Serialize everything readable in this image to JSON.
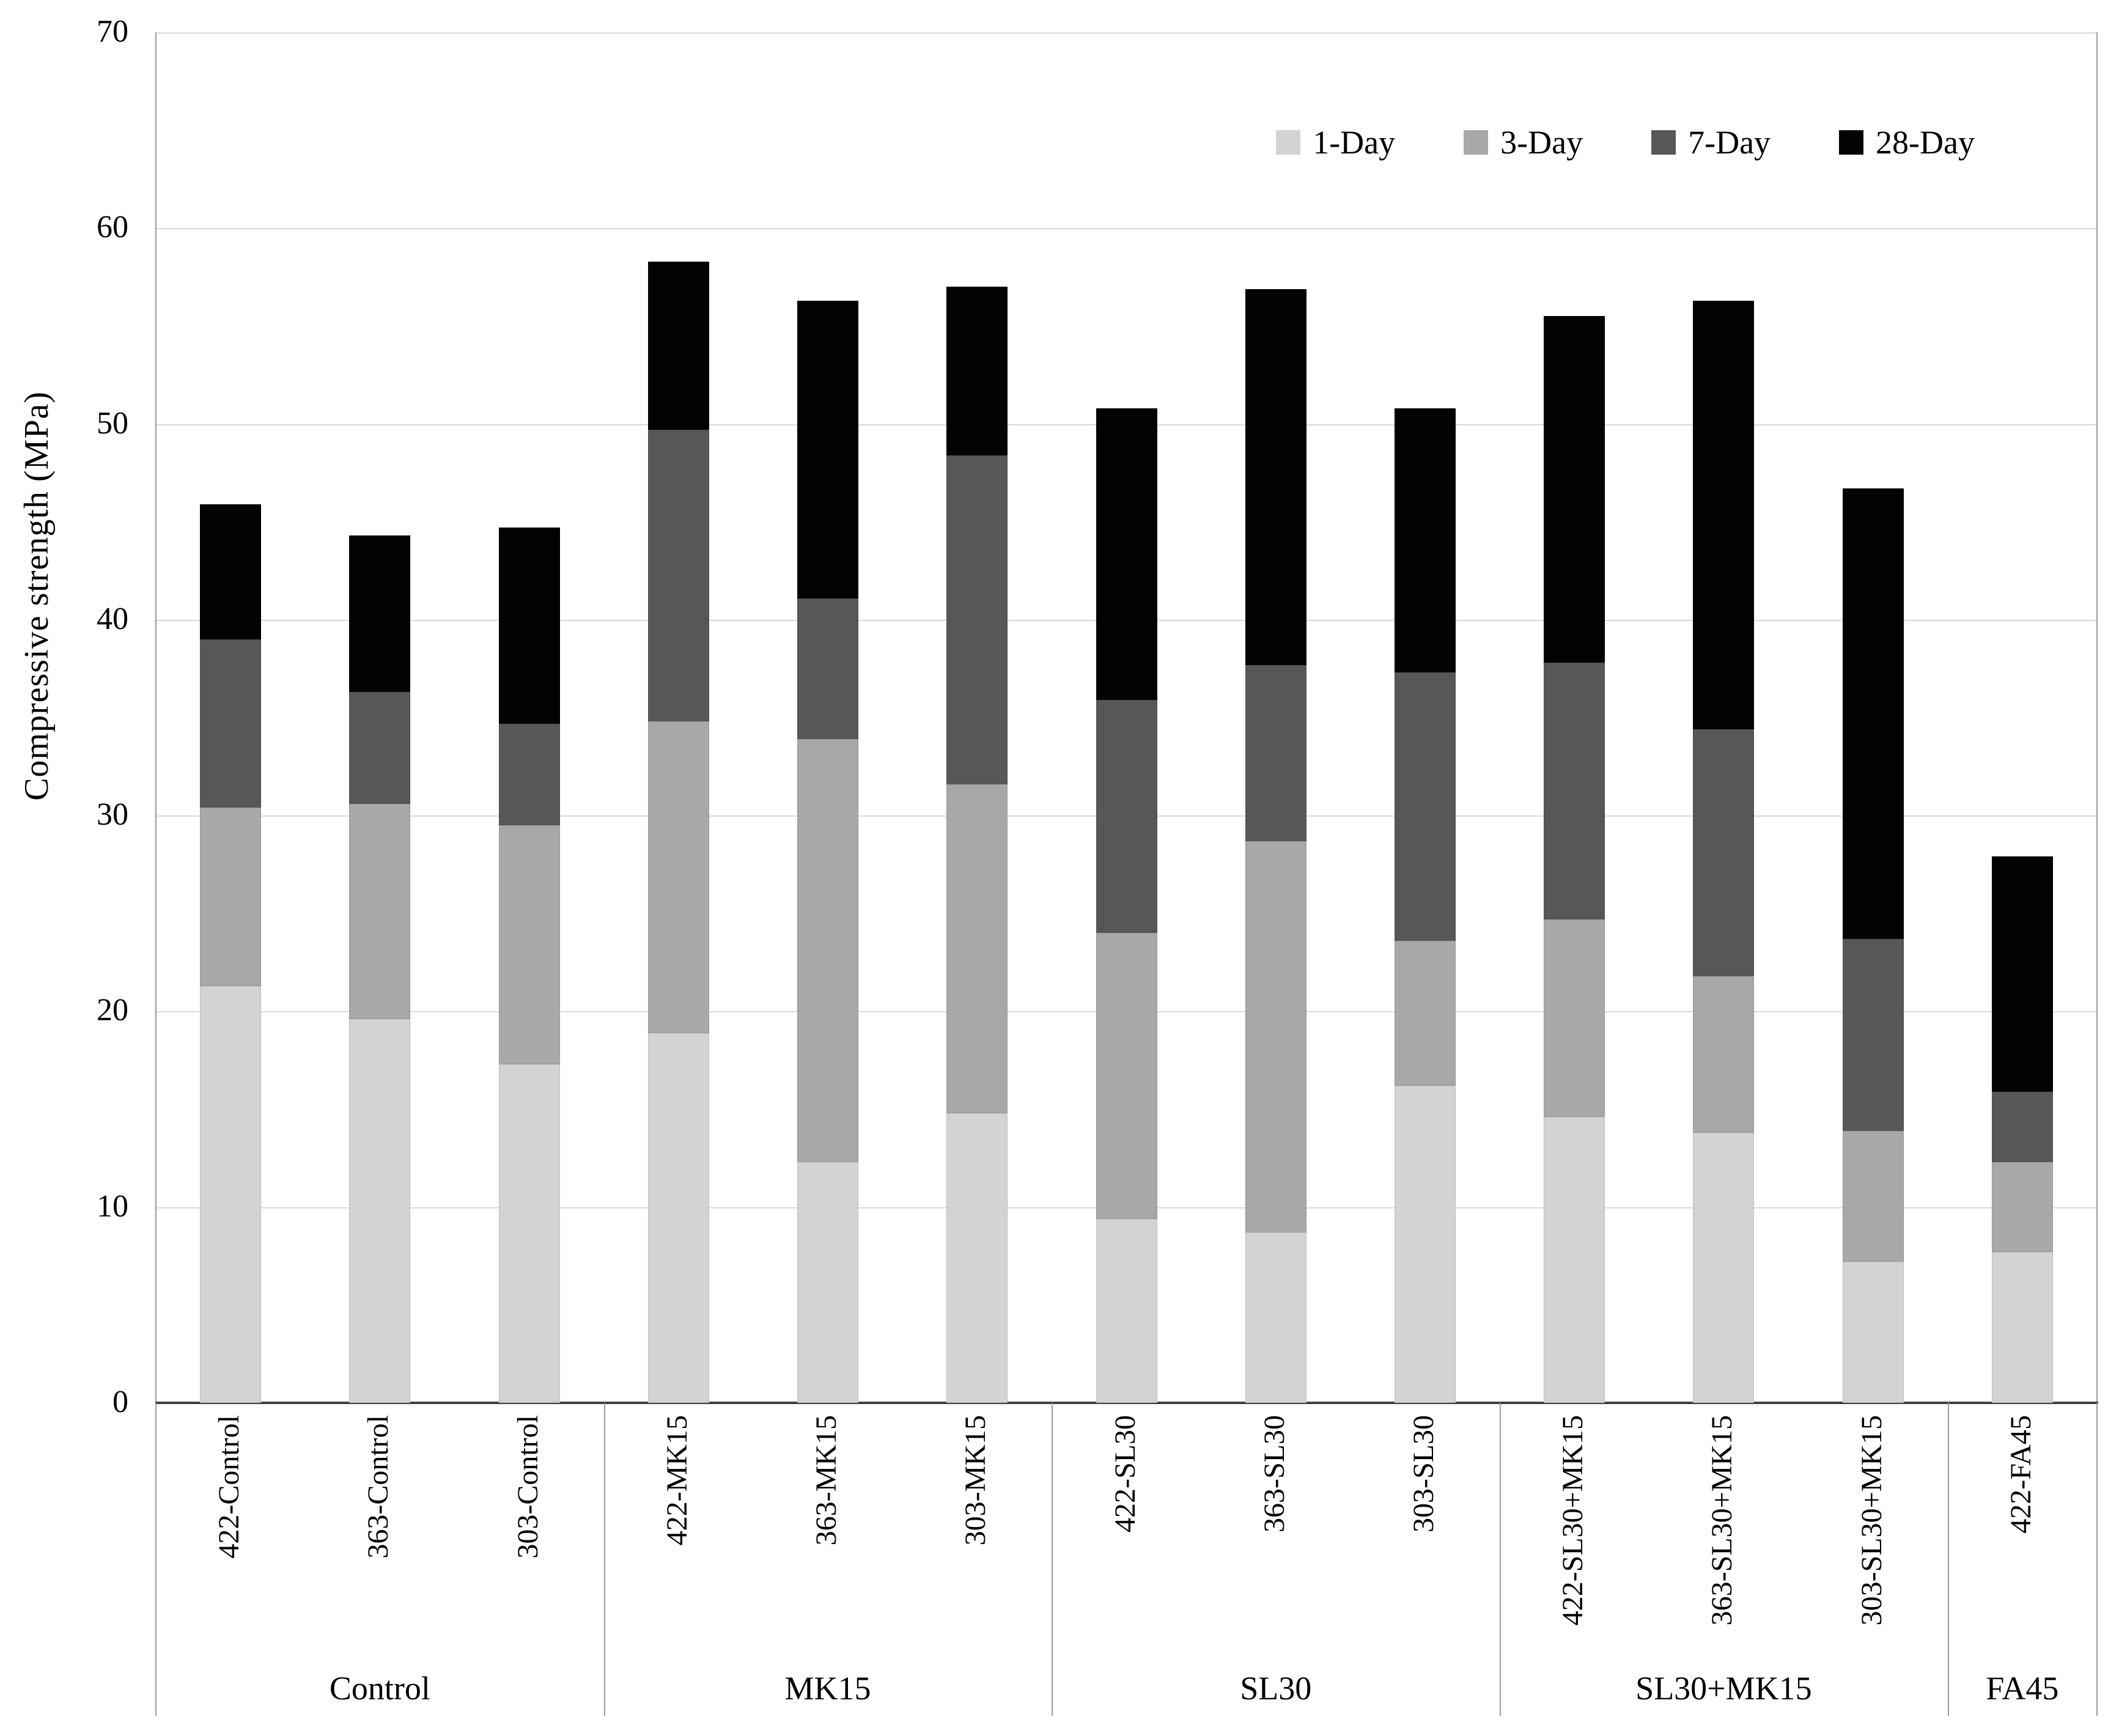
{
  "chart_data": {
    "type": "bar",
    "stacked": true,
    "title": "",
    "xlabel": "",
    "ylabel": "Compressive strength (MPa)",
    "ylim": [
      0,
      70
    ],
    "ytick_interval": 10,
    "yticks": [
      0,
      10,
      20,
      30,
      40,
      50,
      60,
      70
    ],
    "grid": "horizontal-light",
    "legend_position": "top-right-inside",
    "series": [
      {
        "name": "1-Day",
        "color": "#d3d3d3"
      },
      {
        "name": "3-Day",
        "color": "#a8a8a8"
      },
      {
        "name": "7-Day",
        "color": "#575757"
      },
      {
        "name": "28-Day",
        "color": "#030303"
      }
    ],
    "groups": [
      {
        "label": "Control",
        "bars": [
          {
            "label": "422-Control",
            "cumulative_mpa": {
              "1-Day": 21.3,
              "3-Day": 30.4,
              "7-Day": 39.0,
              "28-Day": 45.9
            }
          },
          {
            "label": "363-Control",
            "cumulative_mpa": {
              "1-Day": 19.6,
              "3-Day": 30.6,
              "7-Day": 36.3,
              "28-Day": 44.3
            }
          },
          {
            "label": "303-Control",
            "cumulative_mpa": {
              "1-Day": 17.3,
              "3-Day": 29.5,
              "7-Day": 34.7,
              "28-Day": 44.7
            }
          }
        ]
      },
      {
        "label": "MK15",
        "bars": [
          {
            "label": "422-MK15",
            "cumulative_mpa": {
              "1-Day": 18.9,
              "3-Day": 34.8,
              "7-Day": 49.7,
              "28-Day": 58.3
            }
          },
          {
            "label": "363-MK15",
            "cumulative_mpa": {
              "1-Day": 12.3,
              "3-Day": 33.9,
              "7-Day": 41.1,
              "28-Day": 56.3
            }
          },
          {
            "label": "303-MK15",
            "cumulative_mpa": {
              "1-Day": 14.8,
              "3-Day": 31.6,
              "7-Day": 48.4,
              "28-Day": 57.0
            }
          }
        ]
      },
      {
        "label": "SL30",
        "bars": [
          {
            "label": "422-SL30",
            "cumulative_mpa": {
              "1-Day": 9.4,
              "3-Day": 24.0,
              "7-Day": 35.9,
              "28-Day": 50.8
            }
          },
          {
            "label": "363-SL30",
            "cumulative_mpa": {
              "1-Day": 8.7,
              "3-Day": 28.7,
              "7-Day": 37.7,
              "28-Day": 56.9
            }
          },
          {
            "label": "303-SL30",
            "cumulative_mpa": {
              "1-Day": 16.2,
              "3-Day": 23.6,
              "7-Day": 37.3,
              "28-Day": 50.8
            }
          }
        ]
      },
      {
        "label": "SL30+MK15",
        "bars": [
          {
            "label": "422-SL30+MK15",
            "cumulative_mpa": {
              "1-Day": 14.6,
              "3-Day": 24.7,
              "7-Day": 37.8,
              "28-Day": 55.5
            }
          },
          {
            "label": "363-SL30+MK15",
            "cumulative_mpa": {
              "1-Day": 13.8,
              "3-Day": 21.8,
              "7-Day": 34.4,
              "28-Day": 56.3
            }
          },
          {
            "label": "303-SL30+MK15",
            "cumulative_mpa": {
              "1-Day": 7.2,
              "3-Day": 13.9,
              "7-Day": 23.7,
              "28-Day": 46.7
            }
          }
        ]
      },
      {
        "label": "FA45",
        "bars": [
          {
            "label": "422-FA45",
            "cumulative_mpa": {
              "1-Day": 7.7,
              "3-Day": 12.3,
              "7-Day": 15.9,
              "28-Day": 27.9
            }
          }
        ]
      }
    ]
  },
  "colors": {
    "gridline": "#d9d9d9",
    "axis_spine": "#9b9b9b",
    "baseline": "#404040",
    "text": "#000000",
    "background": "#ffffff"
  }
}
